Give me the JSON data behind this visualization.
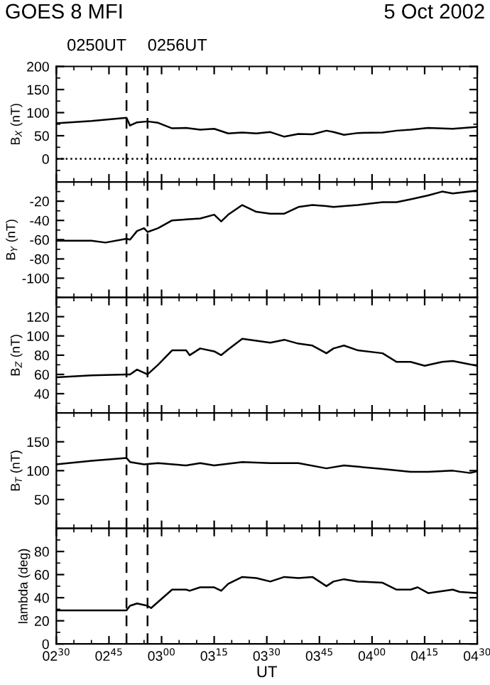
{
  "chart_data": [
    {
      "type": "line",
      "title": "GOES 8 MFI",
      "subtitle": "5 Oct 2002",
      "ylabel": "B$_{X}$ (nT)",
      "series": [
        {
          "color": "#000000",
          "x": [
            "2002-10-05T02:30",
            "2002-10-05T02:40",
            "2002-10-05T02:50",
            "2002-10-05T02:51",
            "2002-10-05T02:53",
            "2002-10-05T02:56",
            "2002-10-05T02:59",
            "2002-10-05T03:03",
            "2002-10-05T03:07",
            "2002-10-05T03:11",
            "2002-10-05T03:15",
            "2002-10-05T03:19",
            "2002-10-05T03:23",
            "2002-10-05T03:27",
            "2002-10-05T03:31",
            "2002-10-05T03:35",
            "2002-10-05T03:39",
            "2002-10-05T03:43",
            "2002-10-05T03:47",
            "2002-10-05T03:49",
            "2002-10-05T03:52",
            "2002-10-05T03:56",
            "2002-10-05T04:03",
            "2002-10-05T04:07",
            "2002-10-05T04:11",
            "2002-10-05T04:16",
            "2002-10-05T04:23",
            "2002-10-05T04:30"
          ],
          "values": [
            77,
            82,
            89,
            72,
            79,
            81,
            78,
            66,
            67,
            63,
            65,
            55,
            57,
            55,
            58,
            48,
            54,
            53,
            61,
            58,
            52,
            56,
            57,
            61,
            63,
            67,
            65,
            69
          ]
        }
      ],
      "xlim": [
        "2002-10-05T02:30",
        "2002-10-05T04:30"
      ],
      "xticks": [
        "2002-10-05T02:30",
        "2002-10-05T02:45",
        "2002-10-05T03:00",
        "2002-10-05T03:15",
        "2002-10-05T03:30",
        "2002-10-05T03:45",
        "2002-10-05T04:00",
        "2002-10-05T04:15",
        "2002-10-05T04:30"
      ],
      "ylim": [
        -50,
        200
      ],
      "yticks": [
        0,
        50,
        100,
        150,
        200
      ],
      "tick_labels": "y",
      "grid": false,
      "legend": false,
      "line_style": "solid",
      "marker": "none",
      "ref_lines": [
        {
          "axis": "x",
          "value": "2002-10-05T02:50",
          "label": "0250UT",
          "line_style": "dashed",
          "color": "#000000"
        },
        {
          "axis": "x",
          "value": "2002-10-05T02:56",
          "label": "0256UT",
          "line_style": "dashed",
          "color": "#000000"
        },
        {
          "axis": "y",
          "value": 0,
          "line_style": "dotted",
          "color": "#000000"
        }
      ]
    },
    {
      "type": "line",
      "ylabel": "B$_{Y}$ (nT)",
      "series": [
        {
          "color": "#000000",
          "x": [
            "2002-10-05T02:30",
            "2002-10-05T02:40",
            "2002-10-05T02:44",
            "2002-10-05T02:50",
            "2002-10-05T02:51",
            "2002-10-05T02:53",
            "2002-10-05T02:55",
            "2002-10-05T02:56",
            "2002-10-05T02:59",
            "2002-10-05T03:03",
            "2002-10-05T03:07",
            "2002-10-05T03:11",
            "2002-10-05T03:15",
            "2002-10-05T03:17",
            "2002-10-05T03:19",
            "2002-10-05T03:23",
            "2002-10-05T03:27",
            "2002-10-05T03:31",
            "2002-10-05T03:35",
            "2002-10-05T03:39",
            "2002-10-05T03:43",
            "2002-10-05T03:47",
            "2002-10-05T03:49",
            "2002-10-05T03:52",
            "2002-10-05T03:56",
            "2002-10-05T04:03",
            "2002-10-05T04:07",
            "2002-10-05T04:11",
            "2002-10-05T04:16",
            "2002-10-05T04:20",
            "2002-10-05T04:23",
            "2002-10-05T04:30"
          ],
          "values": [
            -61,
            -61,
            -63,
            -59,
            -60,
            -51,
            -48,
            -52,
            -48,
            -40,
            -39,
            -38,
            -34,
            -41,
            -34,
            -24,
            -31,
            -33,
            -33,
            -26,
            -24,
            -25,
            -26,
            -25,
            -24,
            -21,
            -21,
            -18,
            -14,
            -10,
            -12,
            -9
          ]
        }
      ],
      "xlim": [
        "2002-10-05T02:30",
        "2002-10-05T04:30"
      ],
      "xticks": [
        "2002-10-05T02:30",
        "2002-10-05T02:45",
        "2002-10-05T03:00",
        "2002-10-05T03:15",
        "2002-10-05T03:30",
        "2002-10-05T03:45",
        "2002-10-05T04:00",
        "2002-10-05T04:15",
        "2002-10-05T04:30"
      ],
      "ylim": [
        -120,
        0
      ],
      "yticks": [
        -100,
        -80,
        -60,
        -40,
        -20
      ],
      "tick_labels": "y",
      "grid": false,
      "legend": false,
      "line_style": "solid",
      "marker": "none",
      "ref_lines": [
        {
          "axis": "x",
          "value": "2002-10-05T02:50",
          "line_style": "dashed",
          "color": "#000000"
        },
        {
          "axis": "x",
          "value": "2002-10-05T02:56",
          "line_style": "dashed",
          "color": "#000000"
        }
      ]
    },
    {
      "type": "line",
      "ylabel": "B$_{Z}$ (nT)",
      "series": [
        {
          "color": "#000000",
          "x": [
            "2002-10-05T02:30",
            "2002-10-05T02:40",
            "2002-10-05T02:50",
            "2002-10-05T02:51",
            "2002-10-05T02:53",
            "2002-10-05T02:56",
            "2002-10-05T02:59",
            "2002-10-05T03:03",
            "2002-10-05T03:07",
            "2002-10-05T03:08",
            "2002-10-05T03:11",
            "2002-10-05T03:15",
            "2002-10-05T03:17",
            "2002-10-05T03:19",
            "2002-10-05T03:23",
            "2002-10-05T03:27",
            "2002-10-05T03:31",
            "2002-10-05T03:35",
            "2002-10-05T03:39",
            "2002-10-05T03:43",
            "2002-10-05T03:47",
            "2002-10-05T03:49",
            "2002-10-05T03:52",
            "2002-10-05T03:56",
            "2002-10-05T04:03",
            "2002-10-05T04:07",
            "2002-10-05T04:11",
            "2002-10-05T04:15",
            "2002-10-05T04:20",
            "2002-10-05T04:23",
            "2002-10-05T04:30"
          ],
          "values": [
            57,
            59,
            60,
            60,
            65,
            60,
            70,
            85,
            85,
            80,
            87,
            84,
            80,
            86,
            97,
            95,
            93,
            96,
            92,
            90,
            82,
            87,
            90,
            85,
            82,
            73,
            73,
            69,
            73,
            74,
            69
          ]
        }
      ],
      "xlim": [
        "2002-10-05T02:30",
        "2002-10-05T04:30"
      ],
      "xticks": [
        "2002-10-05T02:30",
        "2002-10-05T02:45",
        "2002-10-05T03:00",
        "2002-10-05T03:15",
        "2002-10-05T03:30",
        "2002-10-05T03:45",
        "2002-10-05T04:00",
        "2002-10-05T04:15",
        "2002-10-05T04:30"
      ],
      "ylim": [
        20,
        140
      ],
      "yticks": [
        40,
        60,
        80,
        100,
        120
      ],
      "tick_labels": "y",
      "grid": false,
      "legend": false,
      "line_style": "solid",
      "marker": "none",
      "ref_lines": [
        {
          "axis": "x",
          "value": "2002-10-05T02:50",
          "line_style": "dashed",
          "color": "#000000"
        },
        {
          "axis": "x",
          "value": "2002-10-05T02:56",
          "line_style": "dashed",
          "color": "#000000"
        }
      ]
    },
    {
      "type": "line",
      "ylabel": "B$_{T}$ (nT)",
      "series": [
        {
          "color": "#000000",
          "x": [
            "2002-10-05T02:30",
            "2002-10-05T02:40",
            "2002-10-05T02:50",
            "2002-10-05T02:51",
            "2002-10-05T02:55",
            "2002-10-05T02:59",
            "2002-10-05T03:07",
            "2002-10-05T03:11",
            "2002-10-05T03:15",
            "2002-10-05T03:23",
            "2002-10-05T03:31",
            "2002-10-05T03:39",
            "2002-10-05T03:47",
            "2002-10-05T03:52",
            "2002-10-05T04:03",
            "2002-10-05T04:11",
            "2002-10-05T04:16",
            "2002-10-05T04:23",
            "2002-10-05T04:28",
            "2002-10-05T04:30"
          ],
          "values": [
            111,
            117,
            122,
            115,
            111,
            113,
            109,
            113,
            109,
            115,
            113,
            113,
            104,
            109,
            103,
            98,
            98,
            100,
            96,
            99
          ]
        }
      ],
      "xlim": [
        "2002-10-05T02:30",
        "2002-10-05T04:30"
      ],
      "xticks": [
        "2002-10-05T02:30",
        "2002-10-05T02:45",
        "2002-10-05T03:00",
        "2002-10-05T03:15",
        "2002-10-05T03:30",
        "2002-10-05T03:45",
        "2002-10-05T04:00",
        "2002-10-05T04:15",
        "2002-10-05T04:30"
      ],
      "ylim": [
        0,
        200
      ],
      "yticks": [
        50,
        100,
        150
      ],
      "tick_labels": "y",
      "grid": false,
      "legend": false,
      "line_style": "solid",
      "marker": "none",
      "ref_lines": [
        {
          "axis": "x",
          "value": "2002-10-05T02:50",
          "line_style": "dashed",
          "color": "#000000"
        },
        {
          "axis": "x",
          "value": "2002-10-05T02:56",
          "line_style": "dashed",
          "color": "#000000"
        }
      ]
    },
    {
      "type": "line",
      "ylabel": "lambda (deg)",
      "xlabel": "UT",
      "series": [
        {
          "color": "#000000",
          "x": [
            "2002-10-05T02:30",
            "2002-10-05T02:50",
            "2002-10-05T02:51",
            "2002-10-05T02:53",
            "2002-10-05T02:56",
            "2002-10-05T02:57",
            "2002-10-05T03:00",
            "2002-10-05T03:03",
            "2002-10-05T03:07",
            "2002-10-05T03:08",
            "2002-10-05T03:11",
            "2002-10-05T03:15",
            "2002-10-05T03:17",
            "2002-10-05T03:19",
            "2002-10-05T03:23",
            "2002-10-05T03:27",
            "2002-10-05T03:31",
            "2002-10-05T03:35",
            "2002-10-05T03:39",
            "2002-10-05T03:43",
            "2002-10-05T03:47",
            "2002-10-05T03:49",
            "2002-10-05T03:52",
            "2002-10-05T03:56",
            "2002-10-05T04:03",
            "2002-10-05T04:07",
            "2002-10-05T04:11",
            "2002-10-05T04:13",
            "2002-10-05T04:16",
            "2002-10-05T04:23",
            "2002-10-05T04:25",
            "2002-10-05T04:30"
          ],
          "values": [
            29,
            29,
            33,
            35,
            33,
            31,
            39,
            47,
            47,
            46,
            49,
            49,
            46,
            52,
            58,
            57,
            54,
            58,
            57,
            58,
            50,
            54,
            56,
            54,
            53,
            47,
            47,
            49,
            44,
            47,
            45,
            44
          ]
        }
      ],
      "xlim": [
        "2002-10-05T02:30",
        "2002-10-05T04:30"
      ],
      "xticks": [
        {
          "value": "2002-10-05T02:30",
          "label": "02$^{30}$"
        },
        {
          "value": "2002-10-05T02:45",
          "label": "02$^{45}$"
        },
        {
          "value": "2002-10-05T03:00",
          "label": "03$^{00}$"
        },
        {
          "value": "2002-10-05T03:15",
          "label": "03$^{15}$"
        },
        {
          "value": "2002-10-05T03:30",
          "label": "03$^{30}$"
        },
        {
          "value": "2002-10-05T03:45",
          "label": "03$^{45}$"
        },
        {
          "value": "2002-10-05T04:00",
          "label": "04$^{00}$"
        },
        {
          "value": "2002-10-05T04:15",
          "label": "04$^{15}$"
        },
        {
          "value": "2002-10-05T04:30",
          "label": "04$^{30}$"
        }
      ],
      "ylim": [
        0,
        100
      ],
      "yticks": [
        0,
        20,
        40,
        60,
        80
      ],
      "grid": false,
      "legend": false,
      "line_style": "solid",
      "marker": "none",
      "ref_lines": [
        {
          "axis": "x",
          "value": "2002-10-05T02:50",
          "line_style": "dashed",
          "color": "#000000"
        },
        {
          "axis": "x",
          "value": "2002-10-05T02:56",
          "line_style": "dashed",
          "color": "#000000"
        }
      ]
    }
  ]
}
